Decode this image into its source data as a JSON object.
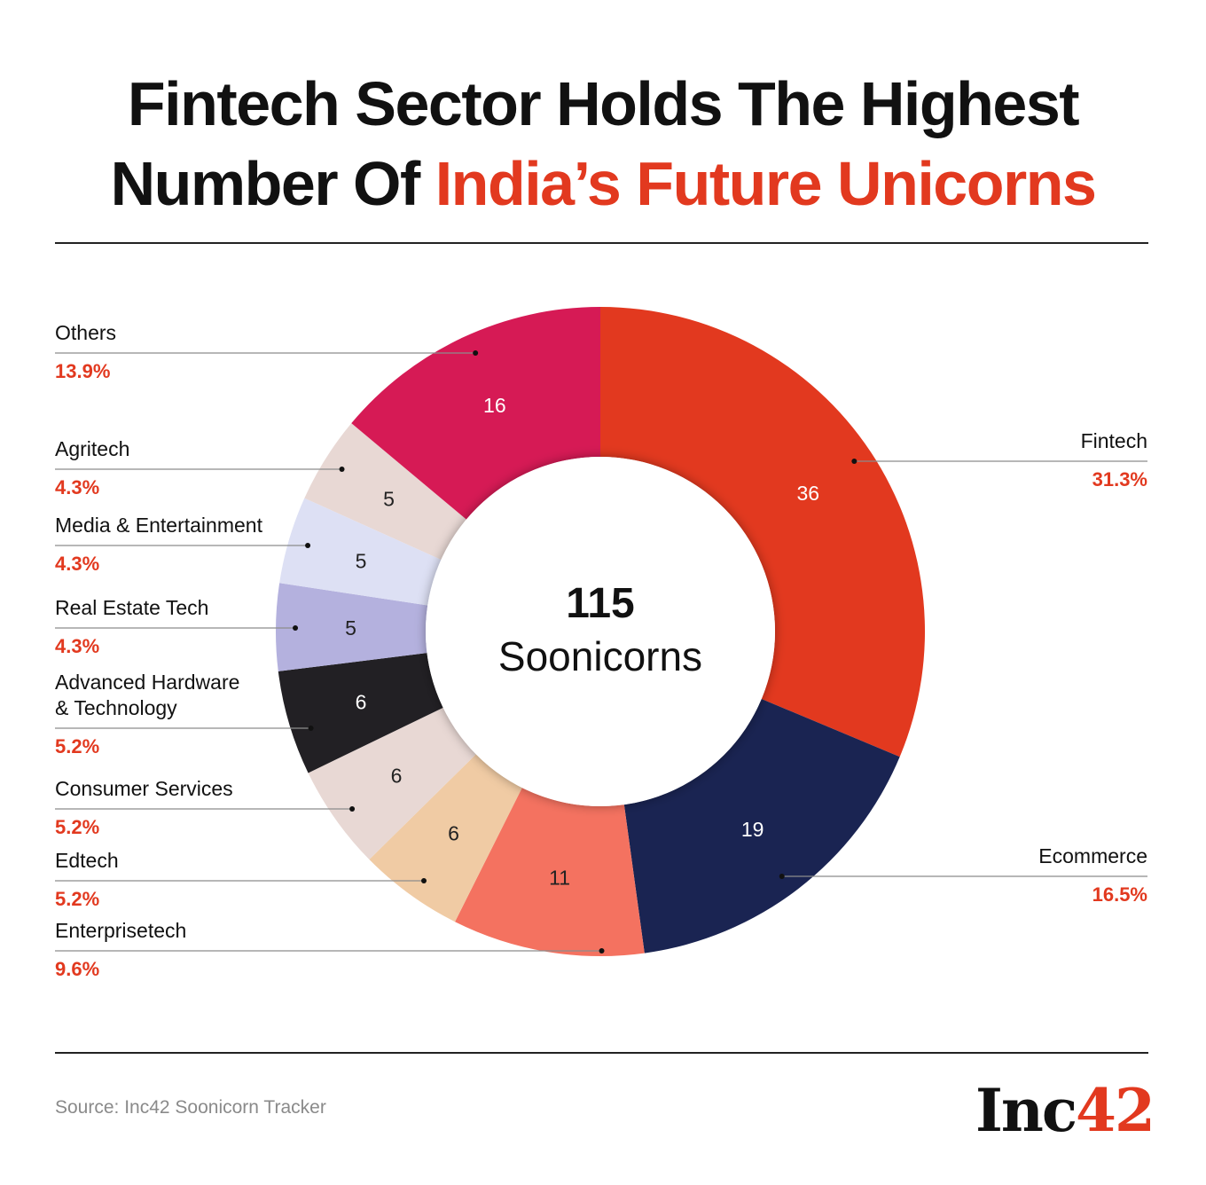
{
  "title": {
    "line1": "Fintech Sector Holds The Highest",
    "line2_plain": "Number Of",
    "line2_accent": "India’s Future Unicorns"
  },
  "colors": {
    "accent": "#e2391f",
    "text": "#111111",
    "leader": "#8c8c8c",
    "source": "#8a8a8a"
  },
  "source": "Source: Inc42 Soonicorn Tracker",
  "logo": {
    "text": "Inc",
    "number": "42"
  },
  "chart_data": {
    "type": "pie",
    "donut": true,
    "total": 115,
    "center_number": "115",
    "center_label": "Soonicorns",
    "slices": [
      {
        "label": "Fintech",
        "value": 36,
        "percent": "31.3%",
        "color": "#e2391f",
        "value_color": "#ffffff",
        "side": "right"
      },
      {
        "label": "Ecommerce",
        "value": 19,
        "percent": "16.5%",
        "color": "#1a2452",
        "value_color": "#ffffff",
        "side": "right"
      },
      {
        "label": "Enterprisetech",
        "value": 11,
        "percent": "9.6%",
        "color": "#f47260",
        "value_color": "#222222",
        "side": "left"
      },
      {
        "label": "Edtech",
        "value": 6,
        "percent": "5.2%",
        "color": "#f0cba4",
        "value_color": "#222222",
        "side": "left"
      },
      {
        "label": "Consumer Services",
        "value": 6,
        "percent": "5.2%",
        "color": "#e8d8d4",
        "value_color": "#222222",
        "side": "left"
      },
      {
        "label": "Advanced Hardware & Technology",
        "label_lines": [
          "Advanced Hardware",
          "& Technology"
        ],
        "value": 6,
        "percent": "5.2%",
        "color": "#222024",
        "value_color": "#ffffff",
        "side": "left"
      },
      {
        "label": "Real Estate Tech",
        "value": 5,
        "percent": "4.3%",
        "color": "#b4b1de",
        "value_color": "#222222",
        "side": "left"
      },
      {
        "label": "Media & Entertainment",
        "value": 5,
        "percent": "4.3%",
        "color": "#dde0f4",
        "value_color": "#222222",
        "side": "left"
      },
      {
        "label": "Agritech",
        "value": 5,
        "percent": "4.3%",
        "color": "#e8d8d4",
        "value_color": "#222222",
        "side": "left"
      },
      {
        "label": "Others",
        "value": 16,
        "percent": "13.9%",
        "color": "#d61a55",
        "value_color": "#ffffff",
        "side": "left"
      }
    ]
  }
}
